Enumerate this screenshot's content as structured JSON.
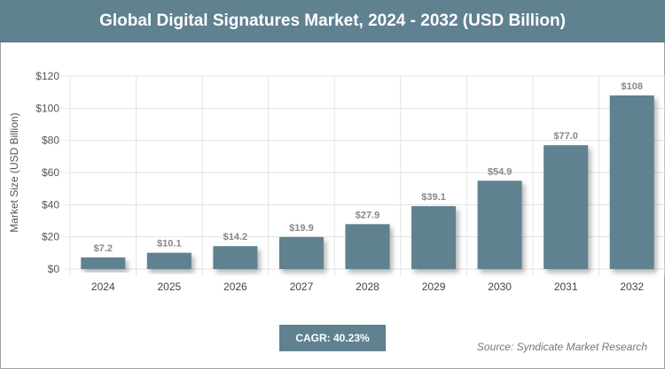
{
  "header": {
    "title": "Global Digital Signatures Market, 2024 - 2032 (USD Billion)"
  },
  "chart_data": {
    "type": "bar",
    "title": "Global Digital Signatures Market, 2024 - 2032 (USD Billion)",
    "ylabel": "Market Size (USD Billion)",
    "xlabel": "",
    "categories": [
      "2024",
      "2025",
      "2026",
      "2027",
      "2028",
      "2029",
      "2030",
      "2031",
      "2032"
    ],
    "values": [
      7.2,
      10.1,
      14.2,
      19.9,
      27.9,
      39.1,
      54.9,
      77.0,
      108
    ],
    "data_labels": [
      "$7.2",
      "$10.1",
      "$14.2",
      "$19.9",
      "$27.9",
      "$39.1",
      "$54.9",
      "$77.0",
      "$108"
    ],
    "ylim": [
      0,
      120
    ],
    "yticks": [
      "$0",
      "$20",
      "$40",
      "$60",
      "$80",
      "$100",
      "$120"
    ],
    "grid": true,
    "bar_color": "#5f8190"
  },
  "footer": {
    "cagr": "CAGR: 40.23%",
    "source": "Source: Syndicate Market Research"
  }
}
